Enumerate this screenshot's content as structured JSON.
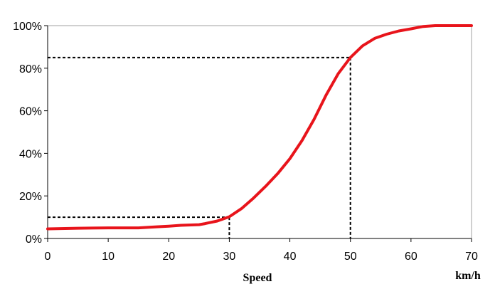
{
  "chart_data": {
    "type": "line",
    "title": "",
    "xlabel": "Speed",
    "x_unit_label": "km/h",
    "ylabel": "",
    "xlim": [
      0,
      70
    ],
    "ylim": [
      0,
      100
    ],
    "x_ticks": [
      0,
      10,
      20,
      30,
      40,
      50,
      60,
      70
    ],
    "x_tick_labels": [
      "0",
      "10",
      "20",
      "30",
      "40",
      "50",
      "60",
      "70"
    ],
    "y_ticks": [
      0,
      20,
      40,
      60,
      80,
      100
    ],
    "y_tick_labels": [
      "0%",
      "20%",
      "40%",
      "60%",
      "80%",
      "100%"
    ],
    "grid": false,
    "legend": "none",
    "series": [
      {
        "color": "#e8141b",
        "x": [
          0,
          5,
          10,
          15,
          18,
          20,
          22,
          25,
          26,
          28,
          30,
          32,
          34,
          36,
          38,
          40,
          42,
          44,
          46,
          48,
          50,
          52,
          54,
          56,
          58,
          60,
          62,
          64,
          66,
          68,
          70
        ],
        "y": [
          4.5,
          4.8,
          5,
          5,
          5.5,
          5.8,
          6.2,
          6.5,
          7,
          8.2,
          10.2,
          14,
          19,
          24.5,
          30.5,
          37.5,
          46,
          56,
          67.5,
          77.5,
          85,
          90.5,
          94,
          96,
          97.5,
          98.5,
          99.6,
          100,
          100,
          100,
          100
        ]
      }
    ],
    "reference_lines": [
      {
        "x": 30,
        "y": 10,
        "color": "#000000",
        "style": "dashed"
      },
      {
        "x": 50,
        "y": 85,
        "color": "#000000",
        "style": "dashed"
      }
    ]
  }
}
